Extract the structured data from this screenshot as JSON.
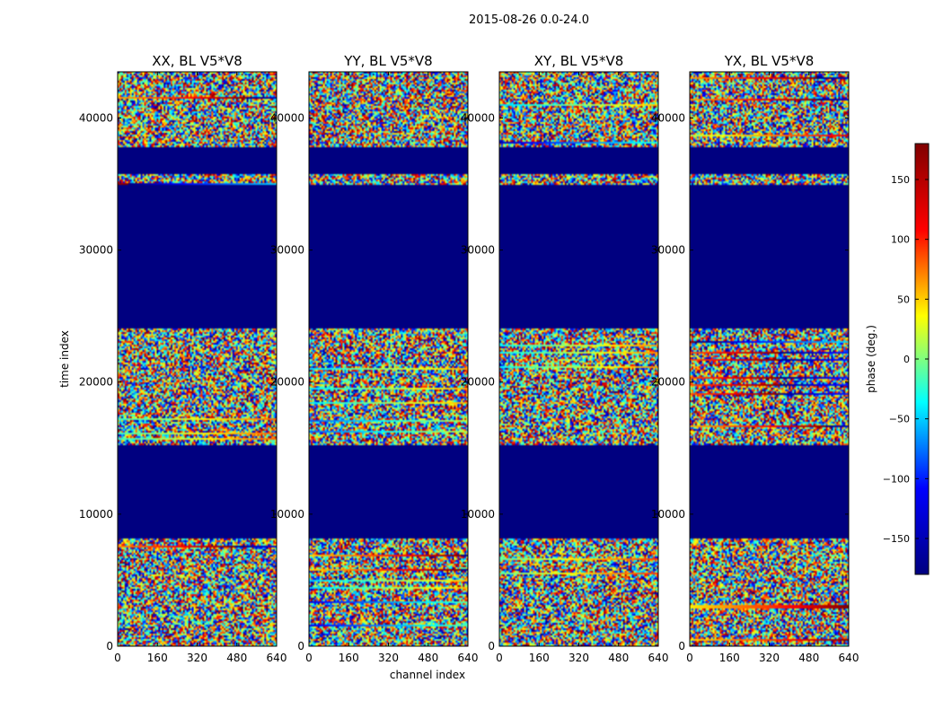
{
  "figure_title": "2015-08-26 0.0-24.0",
  "colorbar": {
    "label": "phase (deg.)",
    "range": [
      -180,
      180
    ],
    "ticks": [
      150,
      100,
      50,
      0,
      -50,
      -100,
      -150
    ],
    "tick_labels": [
      "150",
      "100",
      "50",
      "0",
      "−50",
      "−100",
      "−150"
    ],
    "colormap": "jet",
    "colors": [
      "#000080",
      "#0000ff",
      "#00ffff",
      "#ffff00",
      "#ff0000",
      "#800000"
    ]
  },
  "chart_data": {
    "type": "heatmap",
    "xlabel": "channel index",
    "ylabel": "time index",
    "xlim": [
      0,
      640
    ],
    "ylim": [
      0,
      43500
    ],
    "x_ticks": [
      0,
      160,
      320,
      480,
      640
    ],
    "x_tick_labels": [
      "0",
      "160",
      "320",
      "480",
      "640"
    ],
    "y_ticks": [
      0,
      10000,
      20000,
      30000,
      40000
    ],
    "y_tick_labels": [
      "0",
      "10000",
      "20000",
      "30000",
      "40000"
    ],
    "value_label": "phase (deg.)",
    "fill_value": -180,
    "fill_color": "#000080",
    "panels": [
      {
        "title": "XX, BL V5*V8",
        "pol": "XX"
      },
      {
        "title": "YY, BL V5*V8",
        "pol": "YY"
      },
      {
        "title": "XY, BL V5*V8",
        "pol": "XY"
      },
      {
        "title": "YX, BL V5*V8",
        "pol": "YX"
      }
    ],
    "flagged_time_ranges": [
      [
        8100,
        15200
      ],
      [
        24000,
        35000
      ],
      [
        35700,
        37800
      ]
    ],
    "noisy_time_ranges": [
      [
        0,
        8100
      ],
      [
        15200,
        24000
      ],
      [
        35000,
        35700
      ],
      [
        37800,
        43500
      ]
    ]
  }
}
